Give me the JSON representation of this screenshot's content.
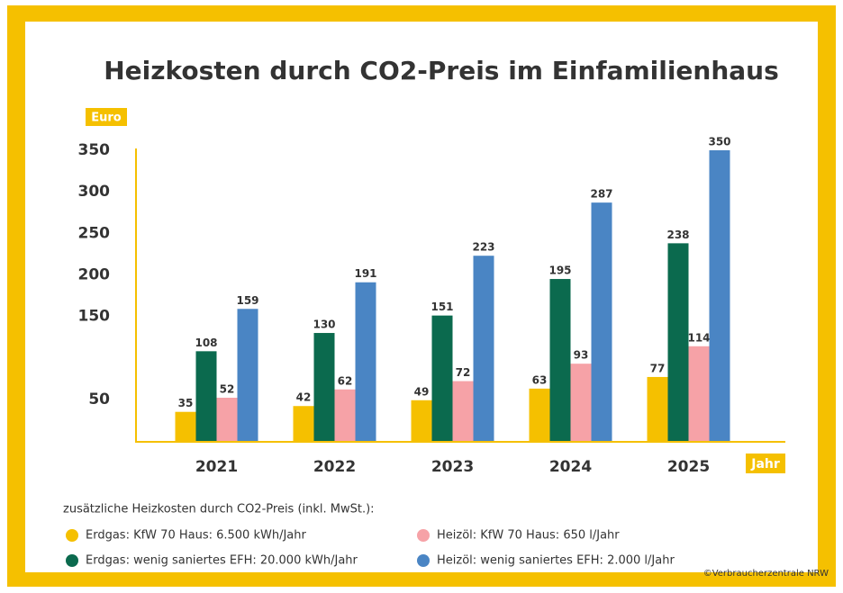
{
  "chart_data": {
    "type": "bar",
    "title": "Heizkosten durch CO2-Preis im Einfamilienhaus",
    "y_label": "Euro",
    "x_label": "Jahr",
    "legend_title": "zusätzliche Heizkosten durch CO2-Preis (inkl. MwSt.):",
    "source": "©Verbraucherzentrale NRW",
    "categories": [
      "2021",
      "2022",
      "2023",
      "2024",
      "2025"
    ],
    "series": [
      {
        "name": "Erdgas: KfW 70 Haus: 6.500 kWh/Jahr",
        "color": "#f5c000",
        "values": [
          35,
          42,
          49,
          63,
          77
        ]
      },
      {
        "name": "Erdgas: wenig saniertes EFH: 20.000 kWh/Jahr",
        "color": "#0b6a4e",
        "values": [
          108,
          130,
          151,
          195,
          238
        ]
      },
      {
        "name": "Heizöl: KfW 70 Haus: 650 l/Jahr",
        "color": "#f6a2a7",
        "values": [
          52,
          62,
          72,
          93,
          114
        ]
      },
      {
        "name": "Heizöl: wenig saniertes EFH: 2.000 l/Jahr",
        "color": "#4a85c4",
        "values": [
          159,
          191,
          223,
          287,
          350
        ]
      }
    ],
    "ylim": [
      0,
      350
    ],
    "yticks": [
      50,
      150,
      200,
      250,
      300,
      350
    ]
  }
}
